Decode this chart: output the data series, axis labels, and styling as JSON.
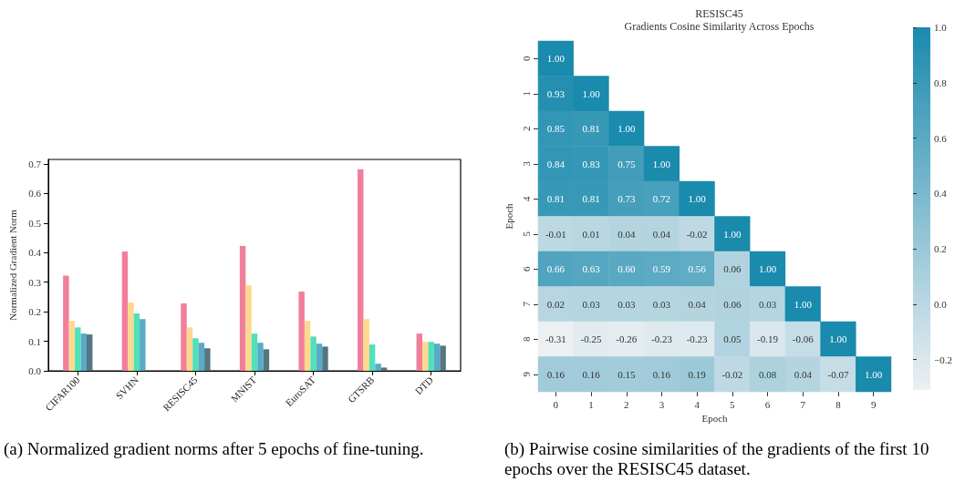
{
  "chart_data": [
    {
      "type": "bar",
      "ylabel": "Normalized Gradient Norm",
      "categories": [
        "CIFAR100",
        "SVHN",
        "RESISC45",
        "MNIST",
        "EuroSAT",
        "GTSRB",
        "DTD"
      ],
      "series": [
        {
          "color": "#f07f9a",
          "values": [
            0.322,
            0.404,
            0.228,
            0.422,
            0.268,
            0.682,
            0.126
          ]
        },
        {
          "color": "#fdd98f",
          "values": [
            0.169,
            0.231,
            0.147,
            0.289,
            0.169,
            0.175,
            0.098
          ]
        },
        {
          "color": "#52e0b9",
          "values": [
            0.147,
            0.194,
            0.11,
            0.126,
            0.116,
            0.089,
            0.098
          ]
        },
        {
          "color": "#58abc6",
          "values": [
            0.126,
            0.175,
            0.095,
            0.095,
            0.092,
            0.024,
            0.092
          ]
        },
        {
          "color": "#537680",
          "values": [
            0.123,
            null,
            0.076,
            0.073,
            0.082,
            0.011,
            0.085
          ]
        }
      ],
      "ylim": [
        0,
        0.715
      ],
      "yticks": [
        {
          "value": 0,
          "label": "0.0"
        },
        {
          "value": 0.1,
          "label": "0.1"
        },
        {
          "value": 0.2,
          "label": "0.2"
        },
        {
          "value": 0.3,
          "label": "0.3"
        },
        {
          "value": 0.4,
          "label": "0.4"
        },
        {
          "value": 0.5,
          "label": "0.5"
        },
        {
          "value": 0.6,
          "label": "0.6"
        },
        {
          "value": 0.7,
          "label": "0.7"
        }
      ],
      "grid": false,
      "annotations": [
        "(a) Normalized gradient norms after 5 epochs of fine-tuning."
      ]
    },
    {
      "type": "heatmap",
      "title": "RESISC45",
      "subtitle": "Gradients Cosine Similarity Across Epochs",
      "xlabel": "Epoch",
      "ylabel": "Epoch",
      "categories": [
        "0",
        "1",
        "2",
        "3",
        "4",
        "5",
        "6",
        "7",
        "8",
        "9"
      ],
      "y_categories": [
        "0",
        "1",
        "2",
        "3",
        "4",
        "5",
        "6",
        "7",
        "8",
        "9"
      ],
      "cells": [
        [
          1.0,
          null,
          null,
          null,
          null,
          null,
          null,
          null,
          null,
          null
        ],
        [
          0.93,
          1.0,
          null,
          null,
          null,
          null,
          null,
          null,
          null,
          null
        ],
        [
          0.85,
          0.81,
          1.0,
          null,
          null,
          null,
          null,
          null,
          null,
          null
        ],
        [
          0.84,
          0.83,
          0.75,
          1.0,
          null,
          null,
          null,
          null,
          null,
          null
        ],
        [
          0.81,
          0.81,
          0.73,
          0.72,
          1.0,
          null,
          null,
          null,
          null,
          null
        ],
        [
          -0.01,
          0.01,
          0.04,
          0.04,
          -0.02,
          1.0,
          null,
          null,
          null,
          null
        ],
        [
          0.66,
          0.63,
          0.6,
          0.59,
          0.56,
          0.06,
          1.0,
          null,
          null,
          null
        ],
        [
          0.02,
          0.03,
          0.03,
          0.03,
          0.04,
          0.06,
          0.03,
          1.0,
          null,
          null
        ],
        [
          -0.31,
          -0.25,
          -0.26,
          -0.23,
          -0.23,
          0.05,
          -0.19,
          -0.06,
          1.0,
          null
        ],
        [
          0.16,
          0.16,
          0.15,
          0.16,
          0.19,
          -0.02,
          0.08,
          0.04,
          -0.07,
          1.0
        ]
      ],
      "cell_labels": [
        [
          "1.00",
          null,
          null,
          null,
          null,
          null,
          null,
          null,
          null,
          null
        ],
        [
          "0.93",
          "1.00",
          null,
          null,
          null,
          null,
          null,
          null,
          null,
          null
        ],
        [
          "0.85",
          "0.81",
          "1.00",
          null,
          null,
          null,
          null,
          null,
          null,
          null
        ],
        [
          "0.84",
          "0.83",
          "0.75",
          "1.00",
          null,
          null,
          null,
          null,
          null,
          null
        ],
        [
          "0.81",
          "0.81",
          "0.73",
          "0.72",
          "1.00",
          null,
          null,
          null,
          null,
          null
        ],
        [
          "-0.01",
          "0.01",
          "0.04",
          "0.04",
          "-0.02",
          "1.00",
          null,
          null,
          null,
          null
        ],
        [
          "0.66",
          "0.63",
          "0.60",
          "0.59",
          "0.56",
          "0.06",
          "1.00",
          null,
          null,
          null
        ],
        [
          "0.02",
          "0.03",
          "0.03",
          "0.03",
          "0.04",
          "0.06",
          "0.03",
          "1.00",
          null,
          null
        ],
        [
          "-0.31",
          "-0.25",
          "-0.26",
          "-0.23",
          "-0.23",
          "0.05",
          "-0.19",
          "-0.06",
          "1.00",
          null
        ],
        [
          "0.16",
          "0.16",
          "0.15",
          "0.16",
          "0.19",
          "-0.02",
          "0.08",
          "0.04",
          "-0.07",
          "1.00"
        ]
      ],
      "clim": [
        -0.31,
        1.0
      ],
      "cticks": [
        {
          "value": -0.2,
          "label": "−0.2"
        },
        {
          "value": 0,
          "label": "0.0"
        },
        {
          "value": 0.2,
          "label": "0.2"
        },
        {
          "value": 0.4,
          "label": "0.4"
        },
        {
          "value": 0.6,
          "label": "0.6"
        },
        {
          "value": 0.8,
          "label": "0.8"
        },
        {
          "value": 1.0,
          "label": "1.0"
        }
      ],
      "annotations": [
        "(b) Pairwise cosine similarities of the gradients of the first 10 epochs over the RESISC45 dataset."
      ]
    }
  ]
}
